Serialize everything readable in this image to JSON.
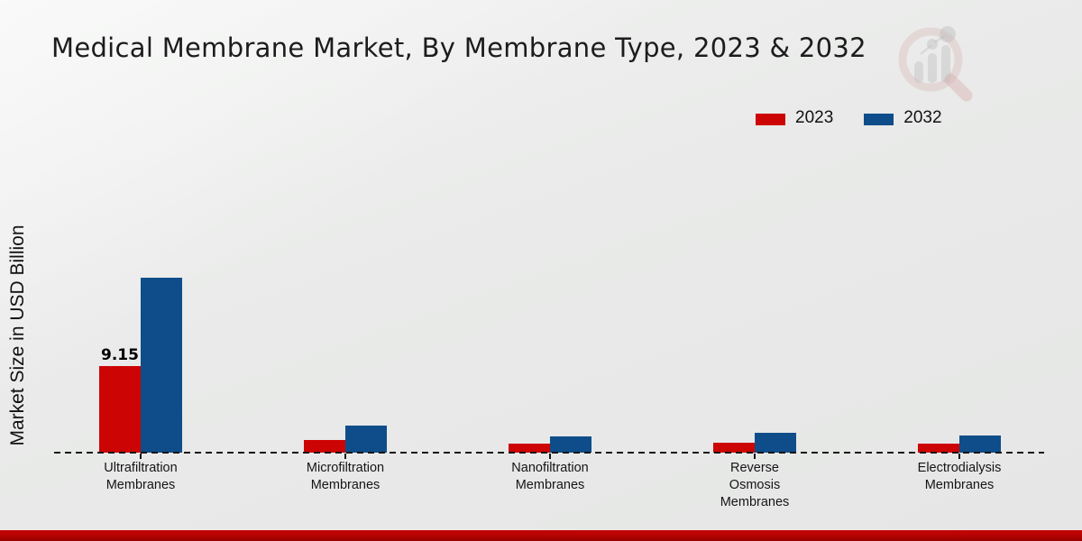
{
  "title": "Medical Membrane Market, By Membrane Type, 2023 & 2032",
  "ylabel": "Market Size in USD Billion",
  "legend": [
    {
      "label": "2023",
      "color": "#cc0403"
    },
    {
      "label": "2032",
      "color": "#0f4d8a"
    }
  ],
  "watermark_icon": "market-research-future-logo",
  "footer_color": "#b30303",
  "chart_data": {
    "type": "bar",
    "title": "Medical Membrane Market, By Membrane Type, 2023 & 2032",
    "ylabel": "Market Size in USD Billion",
    "categories": [
      "Ultrafiltration Membranes",
      "Microfiltration Membranes",
      "Nanofiltration Membranes",
      "Reverse Osmosis Membranes",
      "Electrodialysis Membranes"
    ],
    "category_labels": [
      "Ultrafiltration\nMembranes",
      "Microfiltration\nMembranes",
      "Nanofiltration\nMembranes",
      "Reverse\nOsmosis\nMembranes",
      "Electrodialysis\nMembranes"
    ],
    "series": [
      {
        "name": "2023",
        "color": "#cc0403",
        "values": [
          9.15,
          1.35,
          0.95,
          1.1,
          0.95
        ]
      },
      {
        "name": "2032",
        "color": "#0f4d8a",
        "values": [
          18.5,
          2.9,
          1.75,
          2.1,
          1.85
        ]
      }
    ],
    "annotations": [
      {
        "series": "2023",
        "category": "Ultrafiltration Membranes",
        "text": "9.15"
      }
    ],
    "baseline_style": "dashed",
    "grid": false,
    "legend_position": "top-right",
    "ylim": [
      0,
      20
    ]
  }
}
